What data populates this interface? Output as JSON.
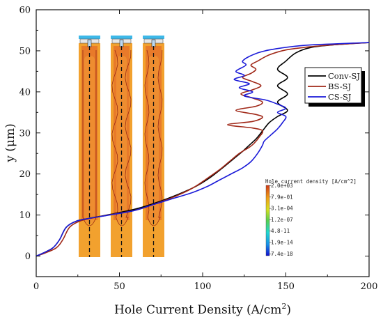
{
  "chart_data": {
    "type": "line",
    "xlabel": "Hole Current Density (A/cm",
    "xlabel_sup": "2",
    "xlabel_close": ")",
    "ylabel": "y (μm)",
    "xlim": [
      0,
      200
    ],
    "ylim": [
      -5,
      60
    ],
    "xticks": [
      0,
      50,
      100,
      150,
      200
    ],
    "yticks": [
      0,
      10,
      20,
      30,
      40,
      50,
      60
    ],
    "legend_position": "right",
    "series": [
      {
        "name": "Conv-SJ",
        "color": "#000000",
        "points": [
          [
            0,
            0
          ],
          [
            4,
            0.7
          ],
          [
            10,
            2
          ],
          [
            14,
            4
          ],
          [
            18,
            7
          ],
          [
            24,
            8.5
          ],
          [
            32,
            9.2
          ],
          [
            45,
            10.2
          ],
          [
            60,
            11.5
          ],
          [
            72,
            13
          ],
          [
            85,
            15
          ],
          [
            96,
            17
          ],
          [
            104,
            19
          ],
          [
            112,
            21.5
          ],
          [
            118,
            23.5
          ],
          [
            124,
            25.5
          ],
          [
            128,
            27
          ],
          [
            132,
            28.5
          ],
          [
            136,
            30.5
          ],
          [
            140,
            32.5
          ],
          [
            145,
            34
          ],
          [
            151,
            35.5
          ],
          [
            145,
            37.5
          ],
          [
            151,
            39.5
          ],
          [
            145,
            41.5
          ],
          [
            151,
            43.5
          ],
          [
            145,
            45.5
          ],
          [
            150,
            47.5
          ],
          [
            156,
            49.5
          ],
          [
            165,
            50.8
          ],
          [
            180,
            51.5
          ],
          [
            200,
            52
          ]
        ]
      },
      {
        "name": "BS-SJ",
        "color": "#a02818",
        "points": [
          [
            0,
            0
          ],
          [
            5,
            0.7
          ],
          [
            12,
            2
          ],
          [
            16,
            4
          ],
          [
            20,
            7
          ],
          [
            26,
            8.5
          ],
          [
            34,
            9.3
          ],
          [
            46,
            10.2
          ],
          [
            60,
            11.2
          ],
          [
            72,
            12.8
          ],
          [
            85,
            14.8
          ],
          [
            95,
            16.8
          ],
          [
            103,
            19
          ],
          [
            110,
            21
          ],
          [
            116,
            23
          ],
          [
            122,
            25
          ],
          [
            128,
            26.5
          ],
          [
            131,
            27.5
          ],
          [
            134,
            29
          ],
          [
            136,
            30.5
          ],
          [
            130,
            31.2
          ],
          [
            115,
            32
          ],
          [
            130,
            32.8
          ],
          [
            136,
            33.8
          ],
          [
            132,
            34.5
          ],
          [
            120,
            35.5
          ],
          [
            132,
            36.5
          ],
          [
            136,
            37.5
          ],
          [
            130,
            38.5
          ],
          [
            123,
            39.5
          ],
          [
            130,
            40.5
          ],
          [
            135,
            41.5
          ],
          [
            130,
            42.5
          ],
          [
            124,
            43.5
          ],
          [
            129,
            44.5
          ],
          [
            132,
            45.5
          ],
          [
            129,
            46.5
          ],
          [
            133,
            47.5
          ],
          [
            140,
            49
          ],
          [
            150,
            50.2
          ],
          [
            165,
            51
          ],
          [
            180,
            51.5
          ],
          [
            200,
            52
          ]
        ]
      },
      {
        "name": "CS-SJ",
        "color": "#1a1ad8",
        "points": [
          [
            0,
            0
          ],
          [
            4,
            0.7
          ],
          [
            10,
            2
          ],
          [
            14,
            4
          ],
          [
            18,
            7
          ],
          [
            24,
            8.5
          ],
          [
            32,
            9.2
          ],
          [
            44,
            10
          ],
          [
            58,
            11
          ],
          [
            70,
            12.5
          ],
          [
            82,
            14
          ],
          [
            94,
            15.5
          ],
          [
            103,
            17
          ],
          [
            110,
            18.5
          ],
          [
            118,
            20.2
          ],
          [
            124,
            21.5
          ],
          [
            129,
            23
          ],
          [
            133,
            25
          ],
          [
            136,
            27
          ],
          [
            137,
            28
          ],
          [
            141,
            29.5
          ],
          [
            145,
            31
          ],
          [
            148,
            32.5
          ],
          [
            150,
            34
          ],
          [
            145,
            35
          ],
          [
            150,
            36
          ],
          [
            145,
            37
          ],
          [
            138,
            38
          ],
          [
            125,
            39
          ],
          [
            130,
            40
          ],
          [
            122,
            41
          ],
          [
            128,
            42
          ],
          [
            119,
            43
          ],
          [
            125,
            44
          ],
          [
            120,
            45
          ],
          [
            126,
            46.5
          ],
          [
            124,
            47.5
          ],
          [
            130,
            49
          ],
          [
            140,
            50.2
          ],
          [
            160,
            51.3
          ],
          [
            180,
            51.7
          ],
          [
            200,
            52
          ]
        ]
      }
    ],
    "colorbar": {
      "title": "Hole current density [A/cm^2]",
      "labels": [
        "2.0e+03",
        "7.9e-01",
        "3.1e-04",
        "1.2e-07",
        "4.8-11",
        "1.9e-14",
        "7.4e-18"
      ]
    }
  }
}
